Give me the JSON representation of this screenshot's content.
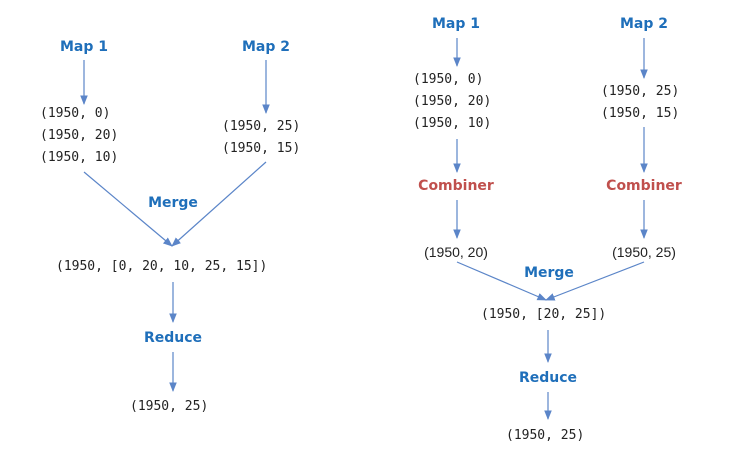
{
  "colors": {
    "label_blue": "#1f6fba",
    "combiner_red": "#c0504d",
    "arrow": "#5b85c8",
    "text": "#222222"
  },
  "without_combiner": {
    "map1": {
      "label": "Map 1",
      "lines": [
        "(1950, 0)",
        "(1950, 20)",
        "(1950, 10)"
      ]
    },
    "map2": {
      "label": "Map 2",
      "lines": [
        "(1950, 25)",
        "(1950, 15)"
      ]
    },
    "merge_label": "Merge",
    "merged": "(1950, [0, 20, 10, 25, 15])",
    "reduce_label": "Reduce",
    "result": "(1950, 25)"
  },
  "with_combiner": {
    "map1": {
      "label": "Map 1",
      "lines": [
        "(1950, 0)",
        "(1950, 20)",
        "(1950, 10)"
      ]
    },
    "map2": {
      "label": "Map 2",
      "lines": [
        "(1950, 25)",
        "(1950, 15)"
      ]
    },
    "combiner1_label": "Combiner",
    "combiner2_label": "Combiner",
    "combined1": "(1950, 20)",
    "combined2": "(1950, 25)",
    "merge_label": "Merge",
    "merged": "(1950, [20, 25])",
    "reduce_label": "Reduce",
    "result": "(1950, 25)"
  }
}
